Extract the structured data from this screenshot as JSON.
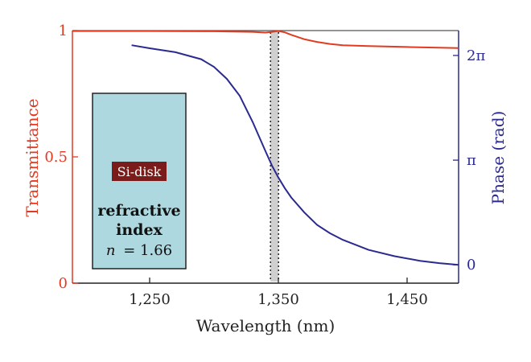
{
  "chart_data": {
    "type": "line",
    "xlabel": "Wavelength (nm)",
    "ylabel_left": "Transmittance",
    "ylabel_right": "Phase (rad)",
    "xlim": [
      1190,
      1490
    ],
    "ylim_left": [
      0,
      1
    ],
    "ylim_right": [
      -0.55,
      7.03
    ],
    "x_ticks": [
      {
        "value": 1250,
        "label": "1,250"
      },
      {
        "value": 1350,
        "label": "1,350"
      },
      {
        "value": 1450,
        "label": "1,450"
      }
    ],
    "y_left_ticks": [
      {
        "value": 0,
        "label": "0"
      },
      {
        "value": 0.5,
        "label": "0.5"
      },
      {
        "value": 1,
        "label": "1"
      }
    ],
    "y_right_ticks": [
      {
        "value": 0,
        "label": "0"
      },
      {
        "value": 3.1416,
        "label": "π"
      },
      {
        "value": 6.2832,
        "label": "2π"
      }
    ],
    "series": [
      {
        "color": "#e23b22",
        "axis": "left",
        "x": [
          1190,
          1250,
          1300,
          1330,
          1340,
          1345,
          1350,
          1355,
          1360,
          1370,
          1380,
          1390,
          1400,
          1420,
          1450,
          1490
        ],
        "y": [
          0.998,
          0.998,
          0.997,
          0.995,
          0.992,
          0.995,
          0.998,
          0.993,
          0.983,
          0.966,
          0.955,
          0.947,
          0.942,
          0.939,
          0.935,
          0.931
        ]
      },
      {
        "color": "#2b2a8f",
        "axis": "right",
        "x": [
          1236,
          1250,
          1270,
          1290,
          1300,
          1310,
          1320,
          1330,
          1340,
          1345,
          1350,
          1355,
          1360,
          1370,
          1380,
          1390,
          1400,
          1420,
          1440,
          1460,
          1475,
          1490
        ],
        "y": [
          6.59,
          6.5,
          6.38,
          6.17,
          5.94,
          5.58,
          5.07,
          4.29,
          3.41,
          2.98,
          2.62,
          2.3,
          2.02,
          1.58,
          1.2,
          0.95,
          0.75,
          0.45,
          0.26,
          0.12,
          0.05,
          0.0
        ]
      }
    ],
    "annotations": {
      "marker_wavelength": 1347,
      "box_tag": "Si-disk",
      "box_line1": "refractive",
      "box_line2": "index",
      "box_n_symbol": "n",
      "box_n_value": "= 1.66",
      "box_fill": "#add8e0",
      "tag_fill": "#7a1d1a"
    }
  }
}
